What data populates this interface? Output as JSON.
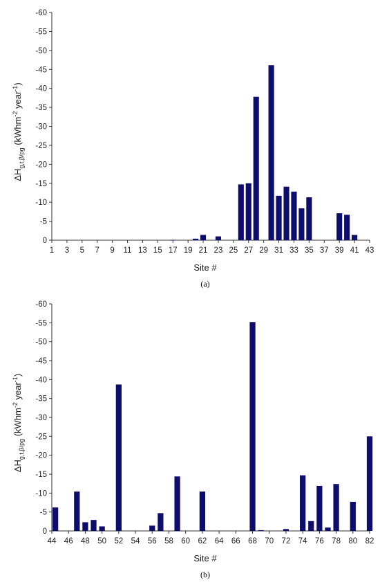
{
  "chart_data": [
    {
      "type": "bar",
      "panel_label": "(a)",
      "xlabel": "Site #",
      "ylabel": {
        "base": "ΔH",
        "sub": "g,t,β/pg",
        "units_open": " (kWhm",
        "exp1": "-2",
        "mid": " year",
        "exp2": "-1",
        "units_close": ")"
      },
      "ylim": [
        0,
        -60
      ],
      "y_ticks": [
        0,
        -5,
        -10,
        -15,
        -20,
        -25,
        -30,
        -35,
        -40,
        -45,
        -50,
        -55,
        -60
      ],
      "x_range": [
        1,
        43
      ],
      "x_tick_labels": [
        1,
        3,
        5,
        7,
        9,
        11,
        13,
        15,
        17,
        19,
        21,
        23,
        25,
        27,
        29,
        31,
        33,
        35,
        37,
        39,
        41,
        43
      ],
      "bar_color": "#0d0d6b",
      "series": [
        {
          "x": [
            17,
            20,
            21,
            23,
            26,
            27,
            28,
            30,
            31,
            32,
            33,
            34,
            35,
            39,
            40,
            41
          ],
          "values": [
            -0.1,
            -0.4,
            -1.4,
            -1.0,
            -14.7,
            -15.0,
            -37.8,
            -46.1,
            -11.7,
            -14.1,
            -12.8,
            -8.4,
            -11.3,
            -7.1,
            -6.7,
            -1.4
          ]
        }
      ]
    },
    {
      "type": "bar",
      "panel_label": "(b)",
      "xlabel": "Site #",
      "ylabel": {
        "base": "ΔH",
        "sub": "g,t,β/pg",
        "units_open": " (kWhm",
        "exp1": "-2",
        "mid": " year",
        "exp2": "-1",
        "units_close": ")"
      },
      "ylim": [
        0,
        -60
      ],
      "y_ticks": [
        0,
        -5,
        -10,
        -15,
        -20,
        -25,
        -30,
        -35,
        -40,
        -45,
        -50,
        -55,
        -60
      ],
      "x_range": [
        44,
        82
      ],
      "x_tick_labels": [
        44,
        46,
        48,
        50,
        52,
        54,
        56,
        58,
        60,
        62,
        64,
        66,
        68,
        70,
        72,
        74,
        76,
        78,
        80,
        82
      ],
      "bar_color": "#0d0d6b",
      "series": [
        {
          "x": [
            44,
            47,
            48,
            49,
            50,
            52,
            56,
            57,
            59,
            62,
            68,
            69,
            72,
            74,
            75,
            76,
            77,
            78,
            80,
            82
          ],
          "values": [
            -6.2,
            -10.4,
            -2.3,
            -2.9,
            -1.2,
            -38.7,
            -1.4,
            -4.7,
            -14.4,
            -10.4,
            -55.2,
            -0.2,
            -0.5,
            -14.7,
            -2.6,
            -11.9,
            -0.9,
            -12.4,
            -7.7,
            -25.0
          ]
        }
      ]
    }
  ]
}
